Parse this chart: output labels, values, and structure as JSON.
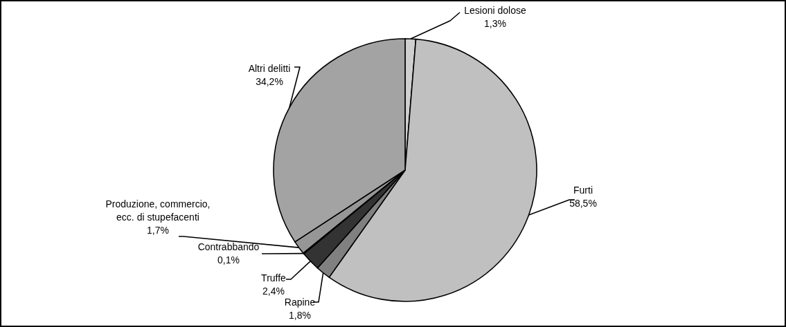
{
  "chart_data": {
    "type": "pie",
    "categories": [
      "Lesioni dolose",
      "Furti",
      "Rapine",
      "Truffe",
      "Contrabbando",
      "Produzione, commercio, ecc. di stupefacenti",
      "Altri delitti"
    ],
    "values": [
      1.3,
      58.5,
      1.8,
      2.4,
      0.1,
      1.7,
      34.2
    ],
    "colors": [
      "#cfcfcf",
      "#c0c0c0",
      "#808080",
      "#333333",
      "#ffffff",
      "#969696",
      "#a3a3a3"
    ],
    "value_labels": [
      "1,3%",
      "58,5%",
      "1,8%",
      "2,4%",
      "0,1%",
      "1,7%",
      "34,2%"
    ]
  }
}
